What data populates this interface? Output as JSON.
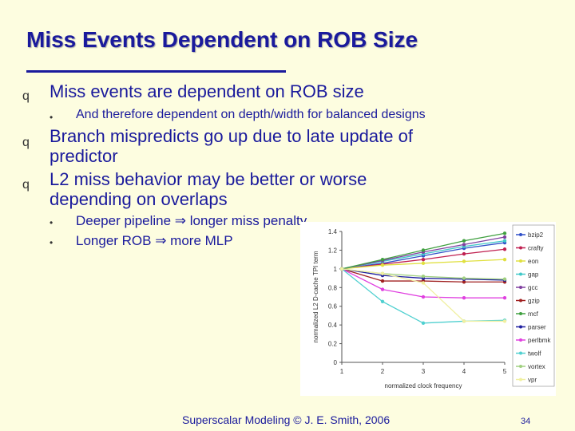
{
  "slide": {
    "title": "Miss Events Dependent on ROB Size",
    "bullets": [
      {
        "marker": "q",
        "text": "Miss events are dependent on ROB size"
      },
      {
        "marker": "•",
        "text": "And therefore dependent on depth/width for balanced designs"
      },
      {
        "marker": "q",
        "line1": "Branch mispredicts go up due to late update of",
        "line2": "predictor"
      },
      {
        "marker": "q",
        "line1": "L2 miss behavior may be better or worse",
        "line2": "depending on overlaps"
      },
      {
        "marker": "•",
        "text": "Deeper pipeline ⇒ longer miss penalty"
      },
      {
        "marker": "•",
        "text": "Longer ROB ⇒ more MLP"
      }
    ],
    "footer": "Superscalar Modeling © J. E. Smith, 2006",
    "page_number": "34"
  },
  "chart_data": {
    "type": "line",
    "xlabel": "normalized clock frequency",
    "ylabel": "normalized L2 D-cache TPI term",
    "x": [
      1,
      2,
      3,
      4,
      5
    ],
    "xticks": [
      "1",
      "2",
      "3",
      "4",
      "5"
    ],
    "ylim": [
      0,
      1.4
    ],
    "yticks": [
      "0",
      "0.2",
      "0.4",
      "0.6",
      "0.8",
      "1",
      "1.2",
      "1.4"
    ],
    "legend_position": "right",
    "series": [
      {
        "name": "bzip2",
        "color": "#3050c8",
        "marker": "diamond",
        "values": [
          1.0,
          1.06,
          1.14,
          1.22,
          1.28
        ]
      },
      {
        "name": "crafty",
        "color": "#c02050",
        "marker": "square",
        "values": [
          1.0,
          1.05,
          1.1,
          1.16,
          1.21
        ]
      },
      {
        "name": "eon",
        "color": "#e0e040",
        "marker": "triangle",
        "values": [
          1.0,
          1.04,
          1.06,
          1.08,
          1.1
        ]
      },
      {
        "name": "gap",
        "color": "#40c8c8",
        "marker": "x",
        "values": [
          1.0,
          1.08,
          1.16,
          1.24,
          1.3
        ]
      },
      {
        "name": "gcc",
        "color": "#8040a0",
        "marker": "star",
        "values": [
          1.0,
          1.09,
          1.18,
          1.26,
          1.34
        ]
      },
      {
        "name": "gzip",
        "color": "#a02020",
        "marker": "circle",
        "values": [
          1.0,
          0.87,
          0.87,
          0.86,
          0.86
        ]
      },
      {
        "name": "mcf",
        "color": "#40a040",
        "marker": "plus",
        "values": [
          1.0,
          1.1,
          1.2,
          1.3,
          1.38
        ]
      },
      {
        "name": "parser",
        "color": "#2020a0",
        "marker": "dash",
        "values": [
          1.0,
          0.93,
          0.9,
          0.89,
          0.88
        ]
      },
      {
        "name": "perlbmk",
        "color": "#e040e0",
        "marker": "diamond",
        "values": [
          1.0,
          0.78,
          0.7,
          0.69,
          0.69
        ]
      },
      {
        "name": "twolf",
        "color": "#50d0d0",
        "marker": "triangle",
        "values": [
          1.0,
          0.65,
          0.42,
          0.44,
          0.45
        ]
      },
      {
        "name": "vortex",
        "color": "#a0d080",
        "marker": "square",
        "values": [
          1.0,
          0.95,
          0.92,
          0.9,
          0.89
        ]
      },
      {
        "name": "vpr",
        "color": "#f0f0a0",
        "marker": "circle",
        "values": [
          1.0,
          0.95,
          0.85,
          0.44,
          0.44
        ]
      }
    ]
  }
}
